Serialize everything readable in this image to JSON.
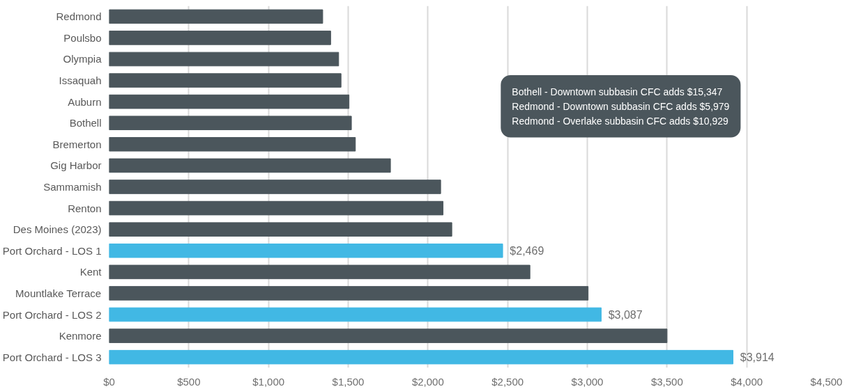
{
  "chart_data": {
    "type": "bar",
    "orientation": "horizontal",
    "categories": [
      "Redmond",
      "Poulsbo",
      "Olympia",
      "Issaquah",
      "Auburn",
      "Bothell",
      "Bremerton",
      "Gig Harbor",
      "Sammamish",
      "Renton",
      "Des Moines (2023)",
      "Port Orchard - LOS 1",
      "Kent",
      "Mountlake Terrace",
      "Port Orchard - LOS 2",
      "Kenmore",
      "Port Orchard - LOS 3"
    ],
    "values": [
      1340,
      1390,
      1440,
      1455,
      1505,
      1520,
      1545,
      1765,
      2080,
      2095,
      2150,
      2469,
      2640,
      3005,
      3087,
      3500,
      3914
    ],
    "colors": [
      "#4b565c",
      "#4b565c",
      "#4b565c",
      "#4b565c",
      "#4b565c",
      "#4b565c",
      "#4b565c",
      "#4b565c",
      "#4b565c",
      "#4b565c",
      "#4b565c",
      "#41b8e4",
      "#4b565c",
      "#4b565c",
      "#41b8e4",
      "#4b565c",
      "#41b8e4"
    ],
    "value_labels": [
      null,
      null,
      null,
      null,
      null,
      null,
      null,
      null,
      null,
      null,
      null,
      "$2,469",
      null,
      null,
      "$3,087",
      null,
      "$3,914"
    ],
    "xlim": [
      0,
      4500
    ],
    "xticks": [
      {
        "value": 0,
        "label": "$0"
      },
      {
        "value": 500,
        "label": "$500"
      },
      {
        "value": 1000,
        "label": "$1,000"
      },
      {
        "value": 1500,
        "label": "$1,500"
      },
      {
        "value": 2000,
        "label": "$2,000"
      },
      {
        "value": 2500,
        "label": "$2,500"
      },
      {
        "value": 3000,
        "label": "$3,000"
      },
      {
        "value": 3500,
        "label": "$3,500"
      },
      {
        "value": 4000,
        "label": "$4,000"
      },
      {
        "value": 4500,
        "label": "$4,500"
      }
    ],
    "grid": "x",
    "annotations": [
      "Bothell - Downtown subbasin CFC adds $15,347",
      "Redmond - Downtown subbasin CFC adds $5,979",
      "Redmond - Overlake subbasin CFC adds $10,929"
    ]
  }
}
